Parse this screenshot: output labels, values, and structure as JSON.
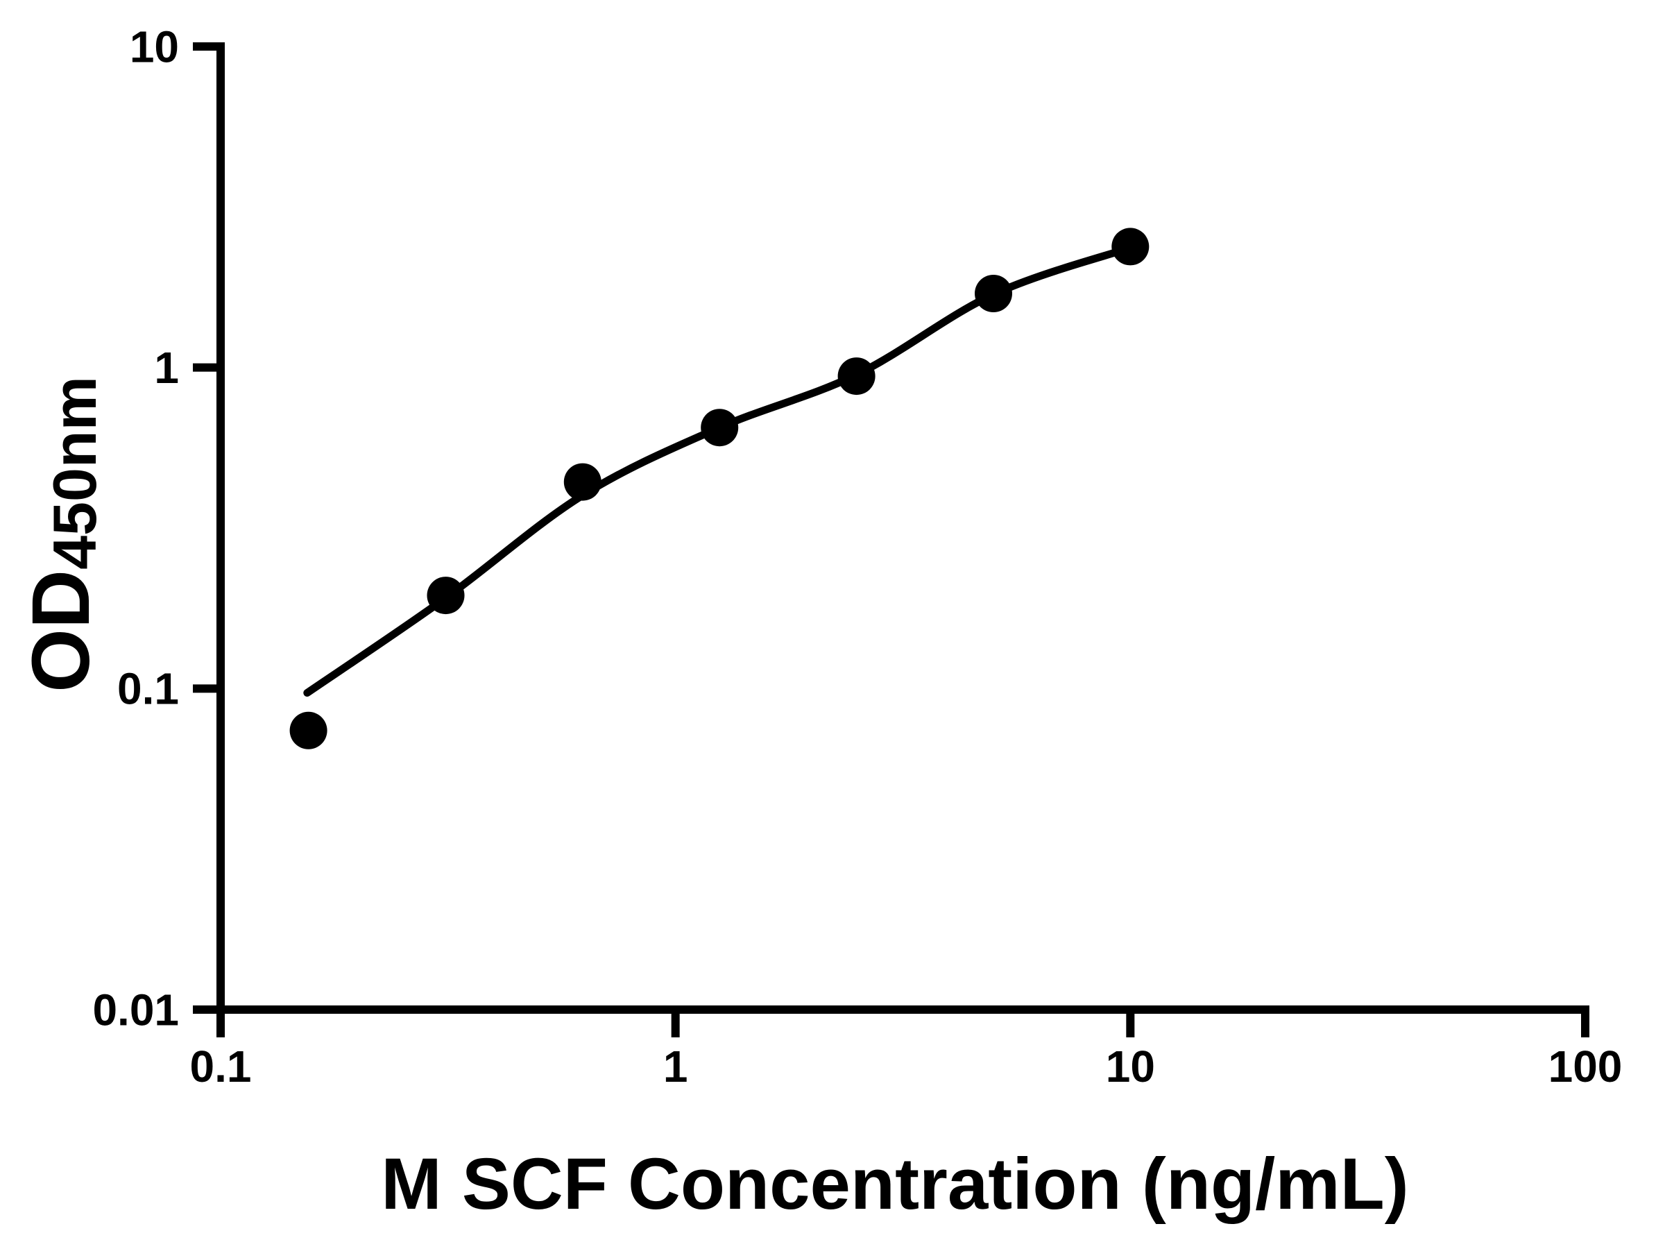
{
  "figure": {
    "background": "#ffffff"
  },
  "chart_data": {
    "type": "scatter",
    "title": "",
    "xlabel": "M SCF Concentration (ng/mL)",
    "ylabel": "OD450nm",
    "ylabel_main": "OD",
    "ylabel_sub": "450nm",
    "x_scale": "log",
    "y_scale": "log",
    "xlim": [
      0.1,
      100
    ],
    "ylim": [
      0.01,
      10
    ],
    "x_ticks": [
      0.1,
      1,
      10,
      100
    ],
    "x_tick_labels": [
      "0.1",
      "1",
      "10",
      "100"
    ],
    "y_ticks": [
      0.01,
      0.1,
      1,
      10
    ],
    "y_tick_labels": [
      "0.01",
      "0.1",
      "1",
      "10"
    ],
    "grid": false,
    "legend": false,
    "axis_color": "#000000",
    "marker_color": "#000000",
    "curve_color": "#000000",
    "series": [
      {
        "marker": "circle",
        "color": "#000000",
        "x": [
          0.156,
          0.3125,
          0.625,
          1.25,
          2.5,
          5,
          10
        ],
        "y": [
          0.074,
          0.195,
          0.44,
          0.65,
          0.94,
          1.7,
          2.38
        ]
      }
    ],
    "fit_curve": {
      "color": "#000000",
      "x": [
        0.155,
        0.31,
        0.625,
        1.25,
        2.5,
        5,
        10
      ],
      "y": [
        0.097,
        0.19,
        0.4,
        0.65,
        0.95,
        1.69,
        2.36
      ]
    }
  }
}
